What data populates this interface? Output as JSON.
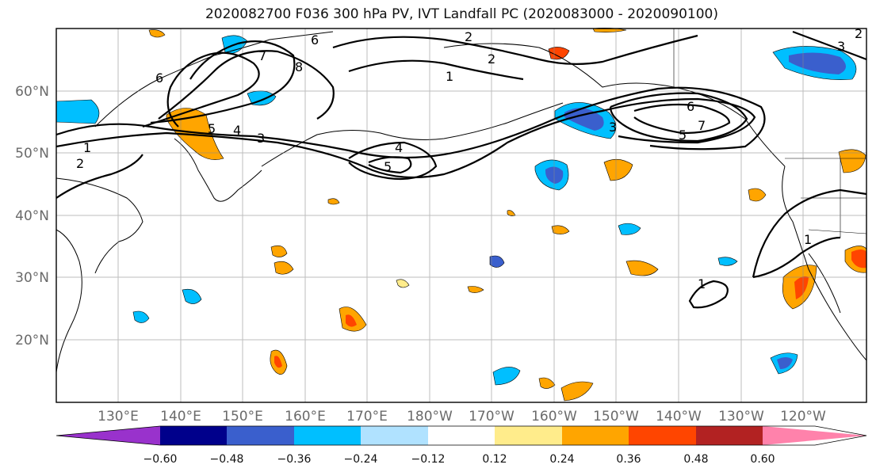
{
  "title": "2020082700 F036 300 hPa PV, IVT Landfall PC (2020083000 - 2020090100)",
  "map": {
    "lat_labels": [
      "60°N",
      "50°N",
      "40°N",
      "30°N",
      "20°N"
    ],
    "lon_labels": [
      "130°E",
      "140°E",
      "150°E",
      "160°E",
      "170°E",
      "180°W",
      "170°W",
      "160°W",
      "150°W",
      "140°W",
      "130°W",
      "120°W"
    ],
    "contour_labels": [
      "6",
      "6",
      "7",
      "8",
      "2",
      "2",
      "1",
      "1",
      "2",
      "5",
      "4",
      "3",
      "4",
      "5",
      "3",
      "6",
      "7",
      "5",
      "1",
      "1",
      "3",
      "2"
    ]
  },
  "colorbar": {
    "ticks": [
      "−0.60",
      "−0.48",
      "−0.36",
      "−0.24",
      "−0.12",
      "0.12",
      "0.24",
      "0.36",
      "0.48",
      "0.60"
    ],
    "colors": [
      "#9932cc",
      "#00008b",
      "#3a5fcd",
      "#00bfff",
      "#b0e2ff",
      "#ffffff",
      "#ffec8b",
      "#ffa500",
      "#ff4500",
      "#b22222",
      "#ff82ab"
    ]
  }
}
